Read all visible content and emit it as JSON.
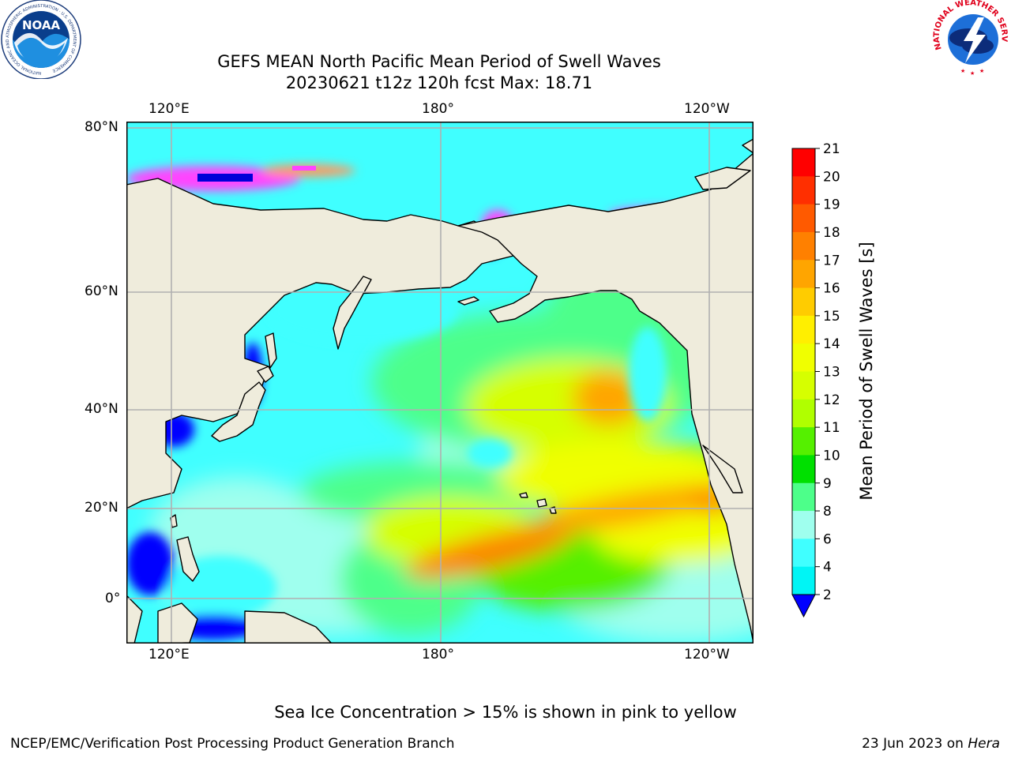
{
  "title": {
    "line1": "GEFS MEAN North Pacific Mean Period of Swell Waves",
    "line2": "20230621 t12z 120h fcst   Max: 18.71"
  },
  "logos": {
    "noaa_text": "NOAA",
    "noaa_ring_text": "NATIONAL OCEANIC AND ATMOSPHERIC ADMINISTRATION · U.S. DEPARTMENT OF COMMERCE",
    "nws_ring_text": "NATIONAL WEATHER SERVICE"
  },
  "map": {
    "lon_labels_top": [
      "120°E",
      "180°",
      "120°W"
    ],
    "lon_labels_bottom": [
      "120°E",
      "180°",
      "120°W"
    ],
    "lat_labels": [
      "80°N",
      "60°N",
      "40°N",
      "20°N",
      "0°"
    ],
    "land_color": "#efecdc",
    "ocean_default": "#40ffff"
  },
  "colorbar": {
    "label": "Mean Period of Swell Waves [s]",
    "ticks": [
      "21",
      "20",
      "19",
      "18",
      "17",
      "16",
      "15",
      "14",
      "13",
      "12",
      "11",
      "10",
      "9",
      "8",
      "6",
      "4",
      "2"
    ],
    "colors": [
      "#ff0000",
      "#ff2f00",
      "#ff5a00",
      "#ff8000",
      "#ffa500",
      "#ffcc00",
      "#ffef00",
      "#f0ff00",
      "#d6ff00",
      "#b0ff00",
      "#55f000",
      "#00e000",
      "#4dff8a",
      "#9fffee",
      "#40ffff",
      "#00f5f5",
      "#00b2ff",
      "#0050ff"
    ],
    "underflow_color": "#0000ff"
  },
  "caption": "Sea Ice Concentration > 15% is shown in pink to yellow",
  "footer": {
    "left": "NCEP/EMC/Verification Post Processing Product Generation Branch",
    "right_prefix": "23 Jun 2023 on ",
    "right_host": "Hera"
  }
}
